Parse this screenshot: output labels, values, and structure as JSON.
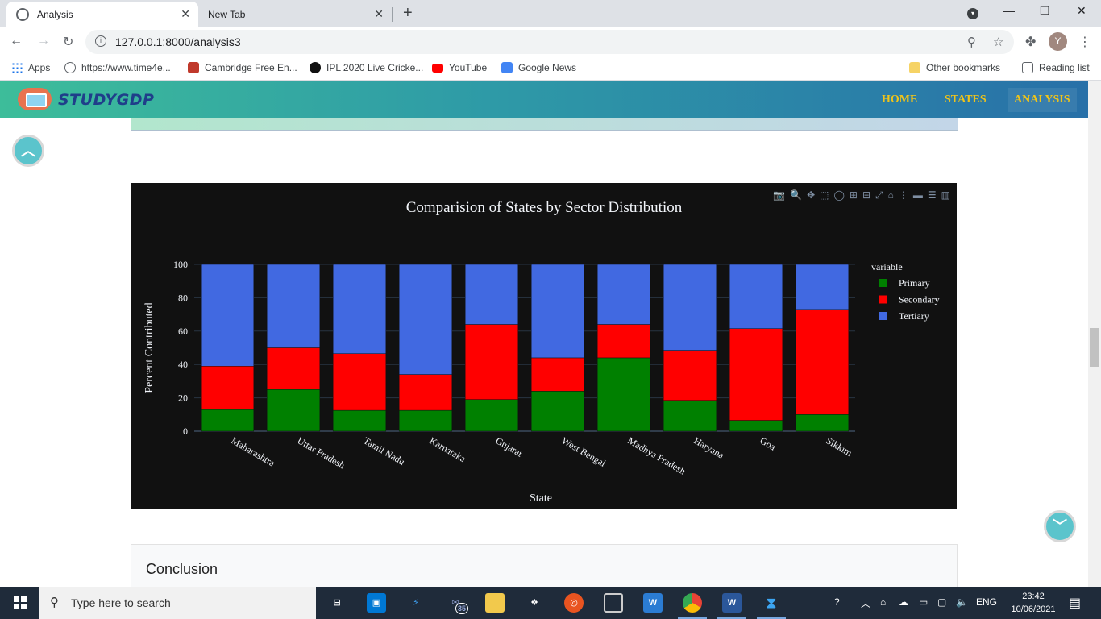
{
  "browser": {
    "tabs": [
      {
        "title": "Analysis",
        "active": true
      },
      {
        "title": "New Tab",
        "active": false
      }
    ],
    "new_tab_symbol": "+",
    "address": "127.0.0.1:8000/analysis3",
    "avatar_letter": "Y",
    "bookmarks": [
      {
        "label": "Apps",
        "icon": "apps-grid-icon",
        "color": "#1a73e8"
      },
      {
        "label": "https://www.time4e...",
        "icon": "globe-icon",
        "color": "#5f6368"
      },
      {
        "label": "Cambridge Free En...",
        "icon": "cambridge-shield-icon",
        "color": "#c0392b"
      },
      {
        "label": "IPL 2020 Live Cricke...",
        "icon": "cricket-icon",
        "color": "#111111"
      },
      {
        "label": "YouTube",
        "icon": "youtube-icon",
        "color": "#ff0000"
      },
      {
        "label": "Google News",
        "icon": "google-news-icon",
        "color": "#4285f4"
      }
    ],
    "other_bookmarks": "Other bookmarks",
    "reading_list": "Reading list"
  },
  "site": {
    "logo_text": "STUDYGDP",
    "nav": [
      {
        "label": "HOME",
        "active": false
      },
      {
        "label": "STATES",
        "active": false
      },
      {
        "label": "ANALYSIS",
        "active": true
      }
    ],
    "nav_color": "#f0c419",
    "conclusion_heading": "Conclusion"
  },
  "chart_data": {
    "type": "bar",
    "stacked": true,
    "title": "Comparision of States by Sector Distribution",
    "xlabel": "State",
    "ylabel": "Percent Contributed",
    "ylim": [
      0,
      100
    ],
    "yticks": [
      0,
      20,
      40,
      60,
      80,
      100
    ],
    "legend_title": "variable",
    "legend_position": "right",
    "background": "#111111",
    "categories": [
      "Maharashtra",
      "Uttar Pradesh",
      "Tamil Nadu",
      "Karnataka",
      "Gujarat",
      "West Bengal",
      "Madhya Pradesh",
      "Haryana",
      "Goa",
      "Sikkim"
    ],
    "series": [
      {
        "name": "Primary",
        "color": "#008000",
        "values": [
          13,
          25,
          12.5,
          12.5,
          19,
          24,
          44,
          18.5,
          6.5,
          10
        ]
      },
      {
        "name": "Secondary",
        "color": "#ff0000",
        "values": [
          26,
          25,
          34,
          21.5,
          45,
          20,
          20,
          30,
          55,
          63
        ]
      },
      {
        "name": "Tertiary",
        "color": "#4169e1",
        "values": [
          61,
          50,
          53.5,
          66,
          36,
          56,
          36,
          51.5,
          38.5,
          27
        ]
      }
    ]
  },
  "taskbar": {
    "search_placeholder": "Type here to search",
    "mail_badge": "35",
    "language": "ENG",
    "time": "23:42",
    "date": "10/06/2021"
  }
}
